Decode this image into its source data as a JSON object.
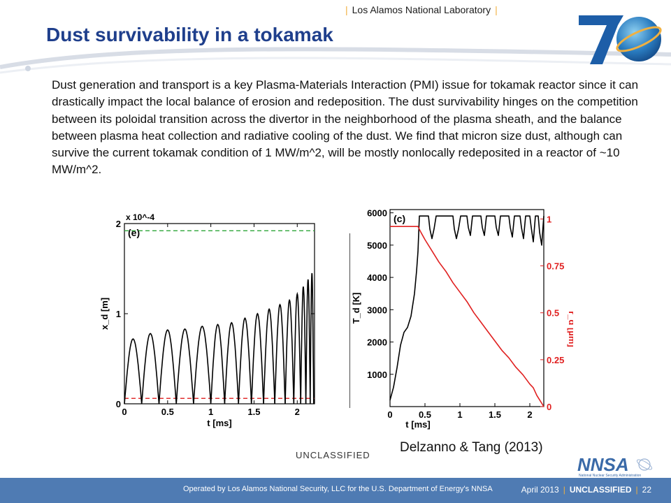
{
  "header": {
    "lab_name": "Los Alamos National Laboratory",
    "title": "Dust survivability in a tokamak",
    "logo_text": "70"
  },
  "body_text": "Dust generation and transport is a key Plasma-Materials Interaction (PMI) issue for tokamak reactor since it can drastically impact the local balance of erosion and redeposition. The dust survivability hinges on the competition between its poloidal transition across the divertor in the neighborhood of the plasma sheath, and the balance between plasma heat collection and radiative cooling of the dust. We find that micron size dust, although can survive the current tokamak condition of 1 MW/m^2, will be mostly nonlocally redeposited in a reactor of ~10 MW/m^2.",
  "chart_data": [
    {
      "type": "line",
      "panel_label": "(e)",
      "xlabel": "t [ms]",
      "ylabel": "x_d [m]",
      "y_multiplier": "x 10^-4",
      "xlim": [
        0,
        2.2
      ],
      "ylim": [
        0,
        2
      ],
      "xticks": [
        0,
        0.5,
        1,
        1.5,
        2
      ],
      "xtick_labels": [
        "0",
        "0.5",
        "1",
        "1.5",
        "2"
      ],
      "yticks": [
        0,
        1,
        2
      ],
      "ytick_labels": [
        "0",
        "1",
        "2"
      ],
      "hlines": [
        {
          "y": 1.92,
          "color": "#2fa63a",
          "style": "dashed"
        },
        {
          "y": 0.06,
          "color": "#e03030",
          "style": "dashed"
        }
      ],
      "series": [
        {
          "color": "#000000",
          "arcs": [
            {
              "start": 0.0,
              "end": 0.2,
              "peak": 0.72
            },
            {
              "start": 0.2,
              "end": 0.4,
              "peak": 0.78
            },
            {
              "start": 0.4,
              "end": 0.6,
              "peak": 0.82
            },
            {
              "start": 0.6,
              "end": 0.8,
              "peak": 0.83
            },
            {
              "start": 0.8,
              "end": 1.0,
              "peak": 0.86
            },
            {
              "start": 1.0,
              "end": 1.16,
              "peak": 0.88
            },
            {
              "start": 1.16,
              "end": 1.32,
              "peak": 0.9
            },
            {
              "start": 1.32,
              "end": 1.47,
              "peak": 0.95
            },
            {
              "start": 1.47,
              "end": 1.61,
              "peak": 1.0
            },
            {
              "start": 1.61,
              "end": 1.74,
              "peak": 1.05
            },
            {
              "start": 1.74,
              "end": 1.86,
              "peak": 1.1
            },
            {
              "start": 1.86,
              "end": 1.96,
              "peak": 1.15
            },
            {
              "start": 1.96,
              "end": 2.04,
              "peak": 1.22
            },
            {
              "start": 2.04,
              "end": 2.1,
              "peak": 1.3
            },
            {
              "start": 2.1,
              "end": 2.15,
              "peak": 1.38
            },
            {
              "start": 2.15,
              "end": 2.19,
              "peak": 1.45
            }
          ]
        }
      ]
    },
    {
      "type": "line",
      "panel_label": "(c)",
      "xlabel": "t [ms]",
      "ylabel": "T_d [K]",
      "ylabel_right": "r_d [µm]",
      "xlim": [
        0,
        2.2
      ],
      "ylim": [
        0,
        6100
      ],
      "ylim_right": [
        0,
        1.05
      ],
      "xticks": [
        0,
        0.5,
        1,
        1.5,
        2
      ],
      "xtick_labels": [
        "0",
        "0.5",
        "1",
        "1.5",
        "2"
      ],
      "yticks": [
        1000,
        2000,
        3000,
        4000,
        5000,
        6000
      ],
      "ytick_labels": [
        "1000",
        "2000",
        "3000",
        "4000",
        "5000",
        "6000"
      ],
      "yticks_right": [
        0,
        0.25,
        0.5,
        0.75,
        1
      ],
      "ytick_labels_right": [
        "0",
        "0.25",
        "0.5",
        "0.75",
        "1"
      ],
      "series": [
        {
          "axis": "left",
          "color": "#000000",
          "x": [
            0,
            0.05,
            0.1,
            0.15,
            0.2,
            0.25,
            0.3,
            0.35,
            0.38,
            0.4,
            0.42,
            0.44,
            0.55,
            0.57,
            0.6,
            0.63,
            0.66,
            0.9,
            0.92,
            0.95,
            0.98,
            1.01,
            1.1,
            1.12,
            1.15,
            1.18,
            1.3,
            1.32,
            1.35,
            1.38,
            1.5,
            1.52,
            1.55,
            1.58,
            1.7,
            1.72,
            1.75,
            1.78,
            1.86,
            1.88,
            1.91,
            1.94,
            2.0,
            2.02,
            2.05,
            2.08,
            2.12,
            2.14,
            2.17,
            2.2
          ],
          "y": [
            200,
            600,
            1200,
            1900,
            2300,
            2450,
            2800,
            3500,
            4200,
            4800,
            5900,
            5900,
            5900,
            5500,
            5200,
            5500,
            5900,
            5900,
            5500,
            5200,
            5500,
            5900,
            5900,
            5550,
            5300,
            5900,
            5900,
            5550,
            5300,
            5900,
            5900,
            5550,
            5300,
            5900,
            5900,
            5550,
            5250,
            5900,
            5900,
            5550,
            5200,
            5900,
            5900,
            5550,
            5100,
            5900,
            5900,
            5400,
            5000,
            5900
          ]
        },
        {
          "axis": "right",
          "color": "#e02020",
          "x": [
            0,
            0.4,
            0.44,
            0.5,
            0.6,
            0.7,
            0.8,
            0.9,
            1.0,
            1.1,
            1.2,
            1.3,
            1.4,
            1.5,
            1.6,
            1.7,
            1.8,
            1.9,
            2.0,
            2.05,
            2.1,
            2.15,
            2.2
          ],
          "y": [
            0.96,
            0.96,
            0.93,
            0.89,
            0.83,
            0.77,
            0.72,
            0.66,
            0.61,
            0.56,
            0.5,
            0.45,
            0.4,
            0.35,
            0.3,
            0.26,
            0.21,
            0.17,
            0.12,
            0.1,
            0.06,
            0.03,
            0.0
          ]
        }
      ]
    }
  ],
  "credit": "Delzanno & Tang (2013)",
  "classification_mid": "UNCLASSIFIED",
  "nnsa_logo_text": "NNSA",
  "nnsa_sub": "National Nuclear Security Administration",
  "footer": {
    "operated_by": "Operated by Los Alamos National Security, LLC for the U.S. Department of Energy's NNSA",
    "date": "April 2013",
    "classification": "UNCLASSIFIED",
    "page": "22"
  },
  "colors": {
    "title_blue": "#1f3f8c",
    "footer_blue": "#4f7bb3",
    "accent_gold": "#f0b040"
  }
}
